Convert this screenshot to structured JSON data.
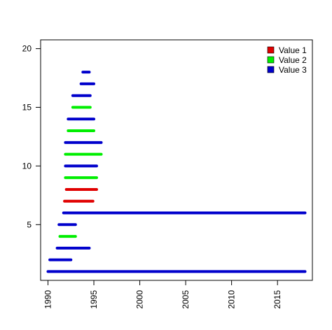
{
  "chart_data": {
    "type": "segment",
    "title": "",
    "xlabel": "",
    "ylabel": "",
    "xlim": [
      1989.2,
      2018.8
    ],
    "ylim": [
      0.25,
      20.75
    ],
    "x_ticks": [
      1990,
      1995,
      2000,
      2005,
      2010,
      2015
    ],
    "x_tick_labels": [
      "1990",
      "1995",
      "2000",
      "2005",
      "2010",
      "2015"
    ],
    "y_ticks": [
      5,
      10,
      15,
      20
    ],
    "y_tick_labels": [
      "5",
      "10",
      "15",
      "20"
    ],
    "grid": false,
    "legend_position": "top-right",
    "series": [
      {
        "name": "Value 1",
        "color": "#e00000"
      },
      {
        "name": "Value 2",
        "color": "#00ee00"
      },
      {
        "name": "Value 3",
        "color": "#0000cc"
      }
    ],
    "segments": [
      {
        "y": 1,
        "x_start": 1990.0,
        "x_end": 2018.0,
        "series": 2
      },
      {
        "y": 2,
        "x_start": 1990.2,
        "x_end": 1992.5,
        "series": 2
      },
      {
        "y": 3,
        "x_start": 1991.0,
        "x_end": 1994.5,
        "series": 2
      },
      {
        "y": 4,
        "x_start": 1991.3,
        "x_end": 1993.0,
        "series": 1
      },
      {
        "y": 5,
        "x_start": 1991.2,
        "x_end": 1993.0,
        "series": 2
      },
      {
        "y": 6,
        "x_start": 1991.7,
        "x_end": 2018.0,
        "series": 2
      },
      {
        "y": 7,
        "x_start": 1991.8,
        "x_end": 1994.9,
        "series": 0
      },
      {
        "y": 8,
        "x_start": 1992.0,
        "x_end": 1995.3,
        "series": 0
      },
      {
        "y": 9,
        "x_start": 1991.9,
        "x_end": 1995.3,
        "series": 1
      },
      {
        "y": 10,
        "x_start": 1991.9,
        "x_end": 1995.3,
        "series": 2
      },
      {
        "y": 11,
        "x_start": 1991.9,
        "x_end": 1995.8,
        "series": 1
      },
      {
        "y": 12,
        "x_start": 1991.9,
        "x_end": 1995.8,
        "series": 2
      },
      {
        "y": 13,
        "x_start": 1992.2,
        "x_end": 1995.0,
        "series": 1
      },
      {
        "y": 14,
        "x_start": 1992.2,
        "x_end": 1995.0,
        "series": 2
      },
      {
        "y": 15,
        "x_start": 1992.7,
        "x_end": 1994.6,
        "series": 1
      },
      {
        "y": 16,
        "x_start": 1992.7,
        "x_end": 1994.6,
        "series": 2
      },
      {
        "y": 17,
        "x_start": 1993.6,
        "x_end": 1995.0,
        "series": 2
      },
      {
        "y": 18,
        "x_start": 1993.8,
        "x_end": 1994.5,
        "series": 2
      }
    ]
  }
}
